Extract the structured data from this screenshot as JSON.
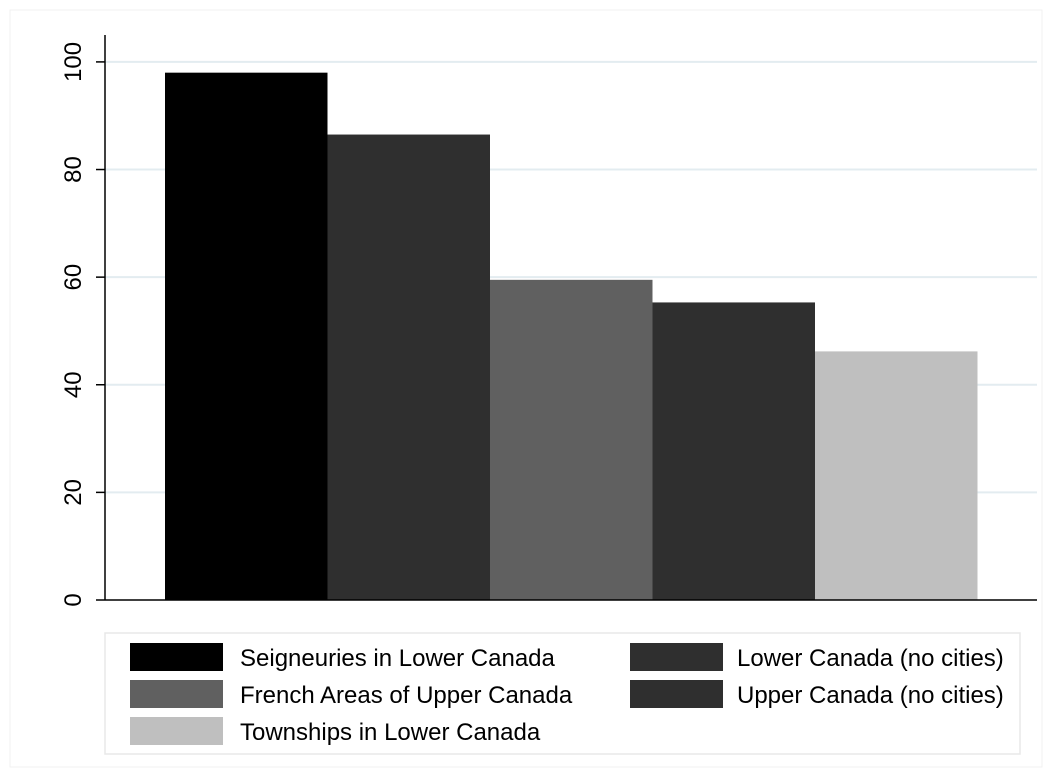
{
  "chart_data": {
    "type": "bar",
    "title": "",
    "xlabel": "",
    "ylabel": "",
    "ylim": [
      0,
      105
    ],
    "yticks": [
      0,
      20,
      40,
      60,
      80,
      100
    ],
    "grid": true,
    "legend_position": "bottom",
    "series": [
      {
        "name": "Seigneuries in Lower Canada",
        "value": 98,
        "color": "#000000"
      },
      {
        "name": "Lower Canada (no cities)",
        "value": 86.5,
        "color": "#2f2f2f"
      },
      {
        "name": "French Areas of Upper Canada",
        "value": 59.5,
        "color": "#606060"
      },
      {
        "name": "Upper Canada (no cities)",
        "value": 55.3,
        "color": "#2f2f2f"
      },
      {
        "name": "Townships in Lower Canada",
        "value": 46.2,
        "color": "#bfbfbf"
      }
    ],
    "colors": {
      "gridline": "#e3ecf0",
      "axis": "#000000",
      "legend_border": "#e8e8e8"
    }
  }
}
